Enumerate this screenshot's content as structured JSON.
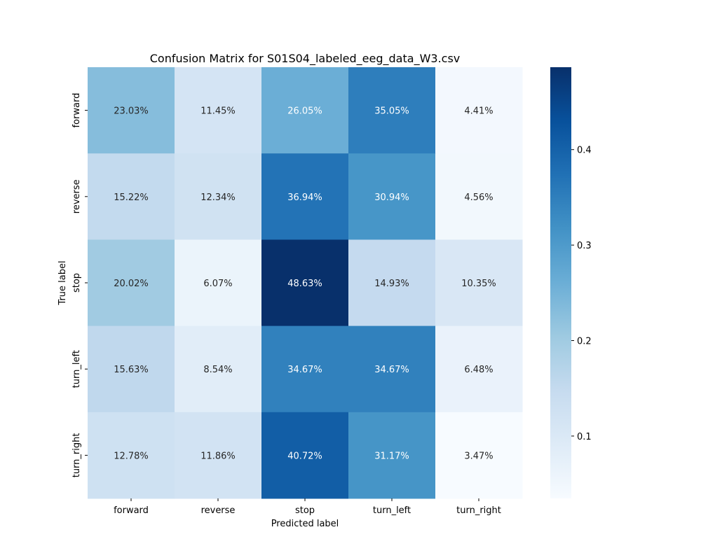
{
  "chart_data": {
    "type": "heatmap",
    "title": "Confusion Matrix for S01S04_labeled_eeg_data_W3.csv",
    "xlabel": "Predicted label",
    "ylabel": "True label",
    "x_categories": [
      "forward",
      "reverse",
      "stop",
      "turn_left",
      "turn_right"
    ],
    "y_categories": [
      "forward",
      "reverse",
      "stop",
      "turn_left",
      "turn_right"
    ],
    "values": [
      [
        0.2303,
        0.1145,
        0.2605,
        0.3505,
        0.0441
      ],
      [
        0.1522,
        0.1234,
        0.3694,
        0.3094,
        0.0456
      ],
      [
        0.2002,
        0.0607,
        0.4863,
        0.1493,
        0.1035
      ],
      [
        0.1563,
        0.0854,
        0.3467,
        0.3467,
        0.0648
      ],
      [
        0.1278,
        0.1186,
        0.4072,
        0.3117,
        0.0347
      ]
    ],
    "annotations": [
      [
        "23.03%",
        "11.45%",
        "26.05%",
        "35.05%",
        "4.41%"
      ],
      [
        "15.22%",
        "12.34%",
        "36.94%",
        "30.94%",
        "4.56%"
      ],
      [
        "20.02%",
        "6.07%",
        "48.63%",
        "14.93%",
        "10.35%"
      ],
      [
        "15.63%",
        "8.54%",
        "34.67%",
        "34.67%",
        "6.48%"
      ],
      [
        "12.78%",
        "11.86%",
        "40.72%",
        "31.17%",
        "3.47%"
      ]
    ],
    "colormap": "Blues",
    "colorbar": {
      "range": [
        0.0347,
        0.4863
      ],
      "ticks": [
        0.1,
        0.2,
        0.3,
        0.4
      ],
      "tick_labels": [
        "0.1",
        "0.2",
        "0.3",
        "0.4"
      ]
    },
    "colors": [
      "#f7fbff",
      "#deebf7",
      "#c6dbef",
      "#9ecae1",
      "#6baed6",
      "#4292c6",
      "#2171b5",
      "#08519c",
      "#08306b"
    ]
  }
}
